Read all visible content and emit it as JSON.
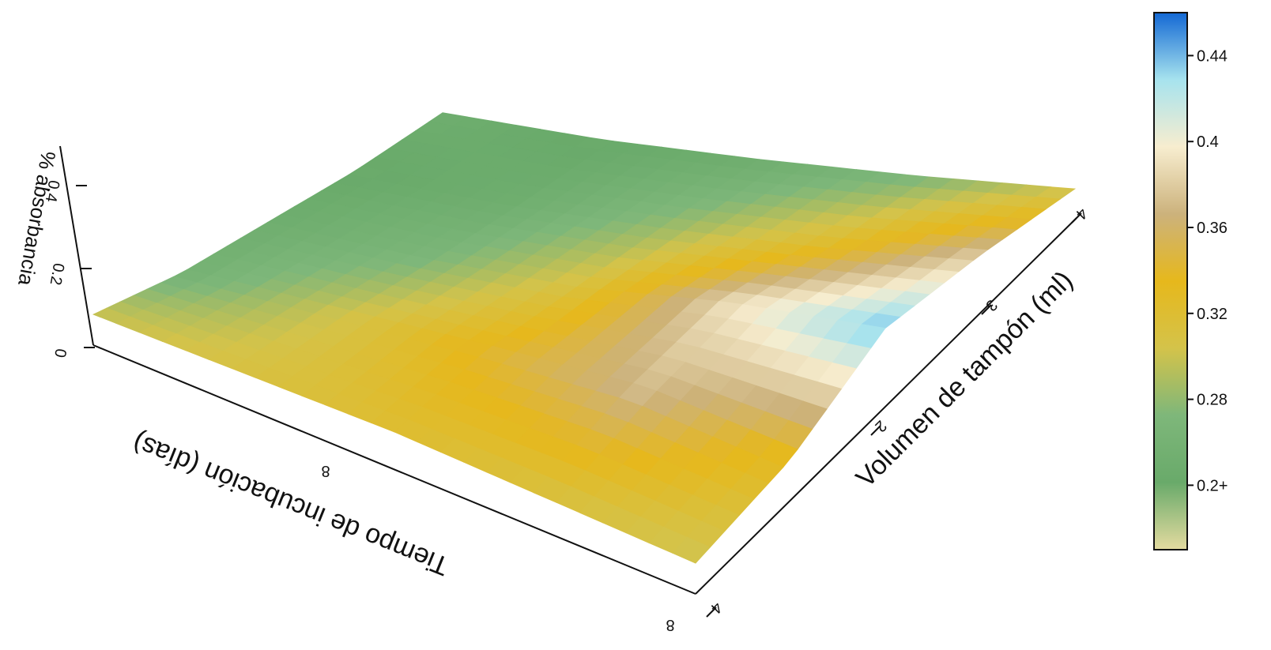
{
  "chart_data": {
    "type": "surface3d",
    "title": "",
    "xlabel": "Tiempo de incubación (días)",
    "ylabel": "Volumen de tampón (ml)",
    "zlabel": "% absorbancia",
    "x_ticks": [
      "8",
      "8"
    ],
    "y_ticks": [
      "2",
      "3",
      "4",
      "4"
    ],
    "z_ticks": [
      "0",
      "0.2",
      "0.4"
    ],
    "x": [
      0,
      1,
      2,
      3,
      4
    ],
    "y": [
      0,
      1,
      2,
      3,
      4
    ],
    "z": [
      [
        0.3,
        0.31,
        0.32,
        0.31,
        0.3
      ],
      [
        0.26,
        0.3,
        0.34,
        0.37,
        0.33
      ],
      [
        0.25,
        0.27,
        0.31,
        0.39,
        0.44
      ],
      [
        0.24,
        0.25,
        0.28,
        0.32,
        0.38
      ],
      [
        0.25,
        0.24,
        0.25,
        0.27,
        0.3
      ]
    ],
    "colorbar": {
      "ticks": [
        "0.2+",
        "0.28",
        "0.32",
        "0.36",
        "0.4",
        "0.44"
      ],
      "tick_values": [
        0.24,
        0.28,
        0.32,
        0.36,
        0.4,
        0.44
      ],
      "min": 0.21,
      "max": 0.46
    },
    "grid": false,
    "legend": "none"
  },
  "colors": {
    "stops": [
      "#e4dba0",
      "#69aa6a",
      "#7eb77a",
      "#d4c34a",
      "#e6b81c",
      "#ccb27c",
      "#f7edcf",
      "#a7e3ee",
      "#1368d4"
    ],
    "axis": "#111111"
  }
}
